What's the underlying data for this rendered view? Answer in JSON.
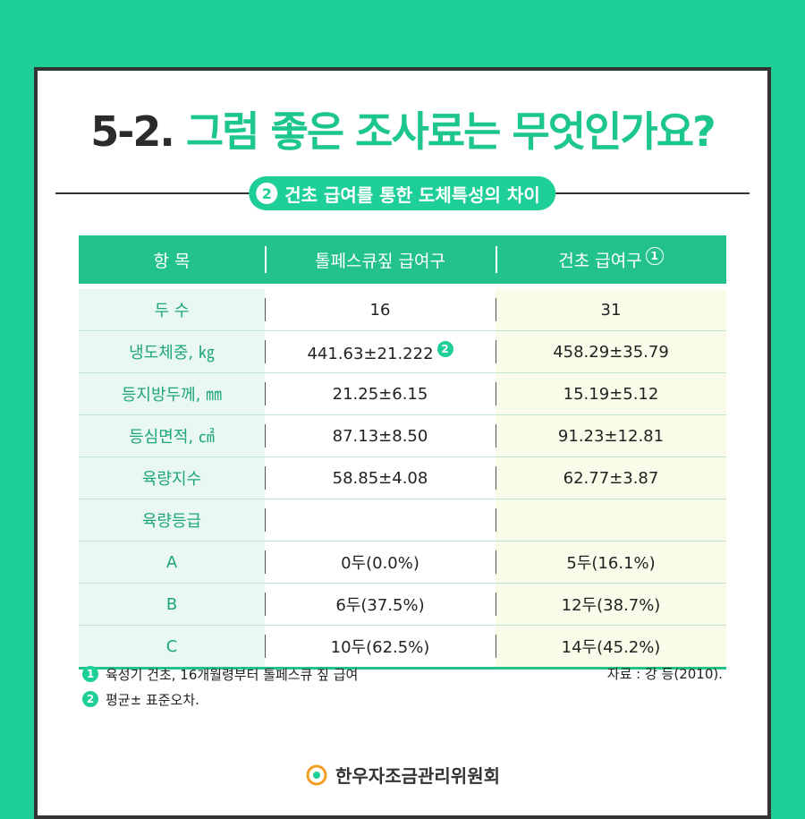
{
  "title": {
    "number": "5-2.",
    "main": "그럼 좋은 조사료는 무엇인가요?"
  },
  "subtitle": {
    "badge": "2",
    "text": "건초 급여를 통한 도체특성의 차이"
  },
  "table": {
    "headers": [
      "항 목",
      "톨페스큐짚 급여구",
      "건초 급여구"
    ],
    "header_mark": "1",
    "value_mark": "2",
    "rows": [
      [
        "두 수",
        "16",
        "31"
      ],
      [
        "냉도체중, ㎏",
        "441.63±21.222",
        "458.29±35.79"
      ],
      [
        "등지방두께, ㎜",
        "21.25±6.15",
        "15.19±5.12"
      ],
      [
        "등심면적, ㎠",
        "87.13±8.50",
        "91.23±12.81"
      ],
      [
        "육량지수",
        "58.85±4.08",
        "62.77±3.87"
      ],
      [
        "육량등급",
        "",
        ""
      ],
      [
        "A",
        "0두(0.0%)",
        "5두(16.1%)"
      ],
      [
        "B",
        "6두(37.5%)",
        "12두(38.7%)"
      ],
      [
        "C",
        "10두(62.5%)",
        "14두(45.2%)"
      ]
    ]
  },
  "notes": [
    {
      "mark": "1",
      "text": "육성기 건초, 16개월령부터 톨페스큐 짚 급여"
    },
    {
      "mark": "2",
      "text": "평균± 표준오차."
    }
  ],
  "source": "자료 : 강 등(2010).",
  "footer": {
    "org": "한우자조금관리위원회"
  },
  "colors": {
    "accent": "#1ecf98",
    "header": "#23c28b",
    "dark": "#333333"
  }
}
